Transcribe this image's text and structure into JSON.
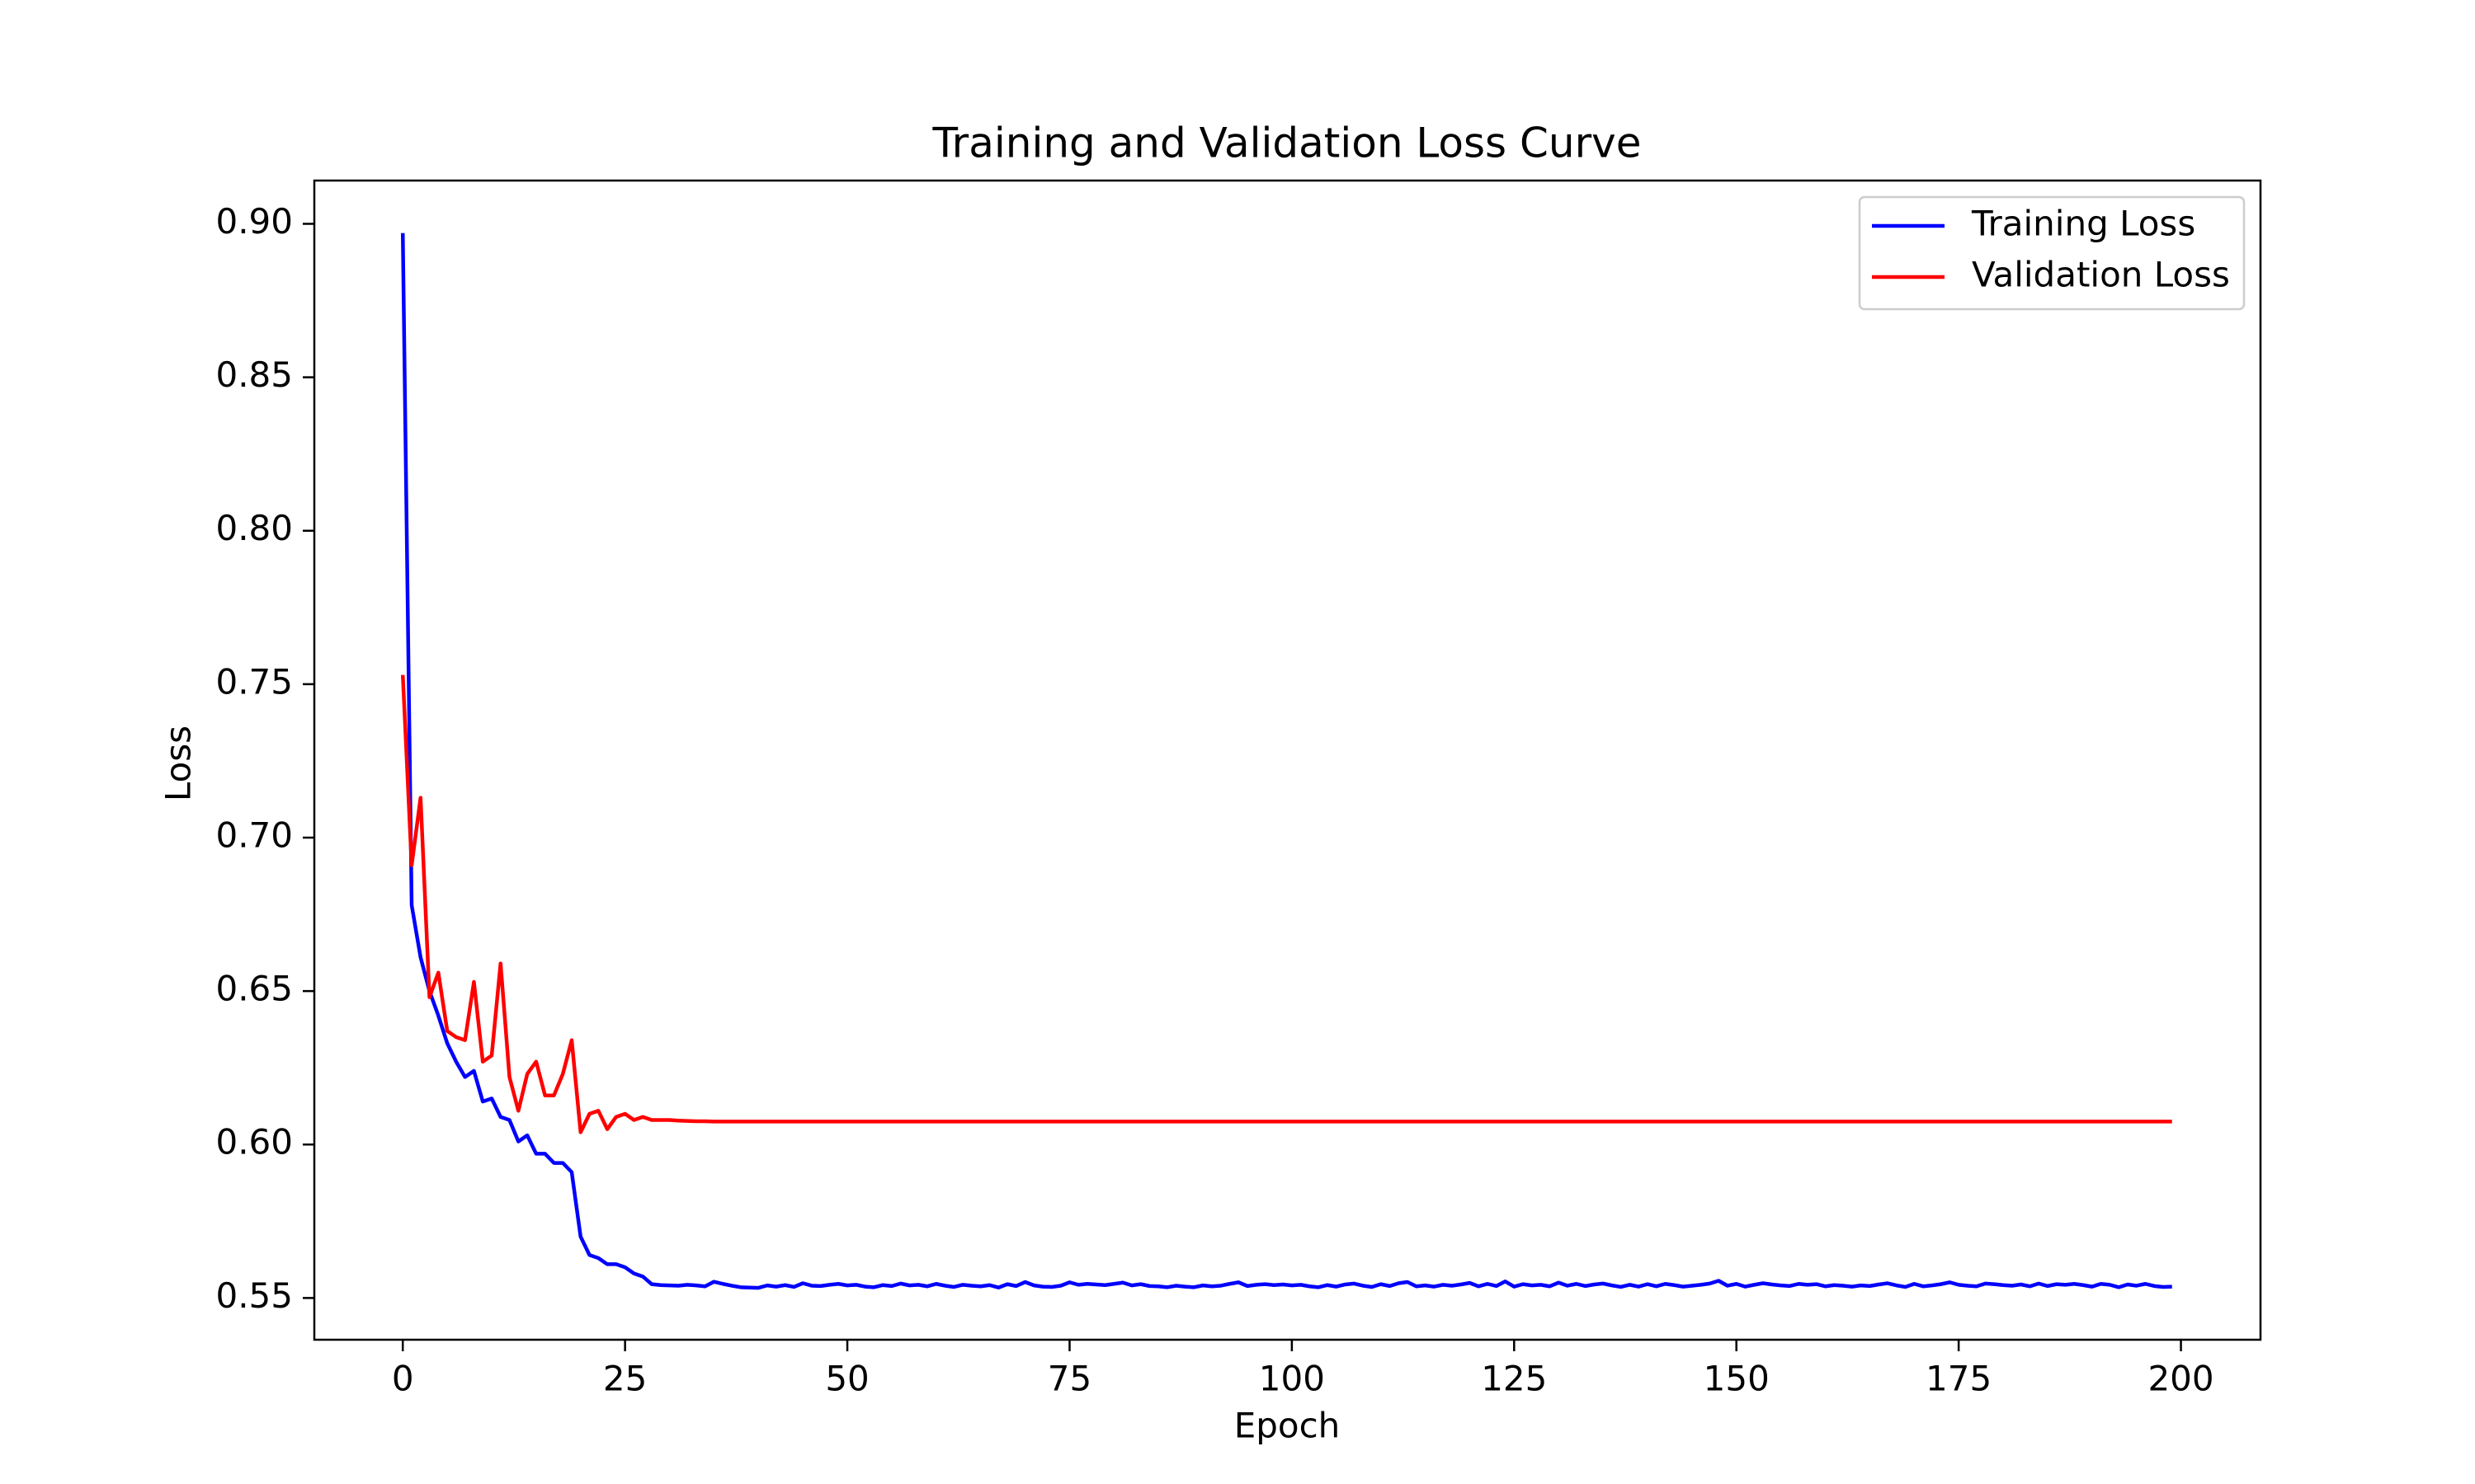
{
  "chart_data": {
    "type": "line",
    "title": "Training and Validation Loss Curve",
    "x_label": "Epoch",
    "y_label": "Loss",
    "legend": "upper right",
    "grid": false,
    "xlim": [
      -9.95,
      208.95
    ],
    "xticks": [
      0,
      25,
      50,
      75,
      100,
      125,
      150,
      175,
      200
    ],
    "ylim": [
      0.5364,
      0.9141
    ],
    "yticks": [
      {
        "value": 0.55,
        "label": "0.55"
      },
      {
        "value": 0.6,
        "label": "0.60"
      },
      {
        "value": 0.65,
        "label": "0.65"
      },
      {
        "value": 0.7,
        "label": "0.70"
      },
      {
        "value": 0.75,
        "label": "0.75"
      },
      {
        "value": 0.8,
        "label": "0.80"
      },
      {
        "value": 0.85,
        "label": "0.85"
      },
      {
        "value": 0.9,
        "label": "0.90"
      }
    ],
    "x": [
      0,
      1,
      2,
      3,
      4,
      5,
      6,
      7,
      8,
      9,
      10,
      11,
      12,
      13,
      14,
      15,
      16,
      17,
      18,
      19,
      20,
      21,
      22,
      23,
      24,
      25,
      26,
      27,
      28,
      29,
      30,
      31,
      32,
      33,
      34,
      35,
      36,
      37,
      38,
      39,
      40,
      41,
      42,
      43,
      44,
      45,
      46,
      47,
      48,
      49,
      50,
      51,
      52,
      53,
      54,
      55,
      56,
      57,
      58,
      59,
      60,
      61,
      62,
      63,
      64,
      65,
      66,
      67,
      68,
      69,
      70,
      71,
      72,
      73,
      74,
      75,
      76,
      77,
      78,
      79,
      80,
      81,
      82,
      83,
      84,
      85,
      86,
      87,
      88,
      89,
      90,
      91,
      92,
      93,
      94,
      95,
      96,
      97,
      98,
      99,
      100,
      101,
      102,
      103,
      104,
      105,
      106,
      107,
      108,
      109,
      110,
      111,
      112,
      113,
      114,
      115,
      116,
      117,
      118,
      119,
      120,
      121,
      122,
      123,
      124,
      125,
      126,
      127,
      128,
      129,
      130,
      131,
      132,
      133,
      134,
      135,
      136,
      137,
      138,
      139,
      140,
      141,
      142,
      143,
      144,
      145,
      146,
      147,
      148,
      149,
      150,
      151,
      152,
      153,
      154,
      155,
      156,
      157,
      158,
      159,
      160,
      161,
      162,
      163,
      164,
      165,
      166,
      167,
      168,
      169,
      170,
      171,
      172,
      173,
      174,
      175,
      176,
      177,
      178,
      179,
      180,
      181,
      182,
      183,
      184,
      185,
      186,
      187,
      188,
      189,
      190,
      191,
      192,
      193,
      194,
      195,
      196,
      197,
      198,
      199
    ],
    "series": [
      {
        "name": "Training Loss",
        "color": "#0000ff",
        "values": [
          0.897,
          0.678,
          0.661,
          0.65,
          0.642,
          0.633,
          0.627,
          0.622,
          0.624,
          0.614,
          0.615,
          0.609,
          0.608,
          0.601,
          0.603,
          0.597,
          0.597,
          0.594,
          0.594,
          0.591,
          0.57,
          0.564,
          0.563,
          0.561,
          0.561,
          0.56,
          0.558,
          0.557,
          0.5545,
          0.5542,
          0.5541,
          0.554,
          0.5543,
          0.5541,
          0.5538,
          0.5553,
          0.5546,
          0.554,
          0.5535,
          0.5534,
          0.5533,
          0.5541,
          0.5537,
          0.5542,
          0.5536,
          0.5548,
          0.554,
          0.5539,
          0.5543,
          0.5546,
          0.5541,
          0.5543,
          0.5537,
          0.5535,
          0.5542,
          0.5539,
          0.5547,
          0.5541,
          0.5543,
          0.5538,
          0.5546,
          0.554,
          0.5536,
          0.5543,
          0.554,
          0.5538,
          0.5542,
          0.5534,
          0.5545,
          0.5539,
          0.5552,
          0.5541,
          0.5537,
          0.5536,
          0.554,
          0.5551,
          0.5543,
          0.5546,
          0.5544,
          0.5542,
          0.5546,
          0.555,
          0.5541,
          0.5545,
          0.5539,
          0.5538,
          0.5535,
          0.554,
          0.5537,
          0.5535,
          0.5541,
          0.5538,
          0.554,
          0.5546,
          0.5551,
          0.5539,
          0.5543,
          0.5545,
          0.5542,
          0.5544,
          0.5541,
          0.5543,
          0.5538,
          0.5535,
          0.5542,
          0.5537,
          0.5544,
          0.5547,
          0.554,
          0.5536,
          0.5545,
          0.5539,
          0.5548,
          0.5552,
          0.5538,
          0.5541,
          0.5537,
          0.5543,
          0.554,
          0.5544,
          0.5549,
          0.5538,
          0.5546,
          0.5539,
          0.5554,
          0.5537,
          0.5545,
          0.5541,
          0.5543,
          0.5538,
          0.555,
          0.554,
          0.5546,
          0.5539,
          0.5544,
          0.5547,
          0.5541,
          0.5536,
          0.5543,
          0.5537,
          0.5545,
          0.5538,
          0.5546,
          0.5542,
          0.5537,
          0.554,
          0.5543,
          0.5547,
          0.5556,
          0.554,
          0.5546,
          0.5537,
          0.5543,
          0.5548,
          0.5544,
          0.5541,
          0.5539,
          0.5546,
          0.5543,
          0.5545,
          0.5538,
          0.5542,
          0.554,
          0.5537,
          0.5541,
          0.5539,
          0.5544,
          0.5548,
          0.5541,
          0.5536,
          0.5546,
          0.5538,
          0.5541,
          0.5545,
          0.5551,
          0.5543,
          0.554,
          0.5538,
          0.5547,
          0.5545,
          0.5542,
          0.554,
          0.5544,
          0.5538,
          0.5547,
          0.5539,
          0.5545,
          0.5543,
          0.5546,
          0.5542,
          0.5537,
          0.5546,
          0.5543,
          0.5535,
          0.5544,
          0.554,
          0.5546,
          0.5539,
          0.5536,
          0.5537
        ]
      },
      {
        "name": "Validation Loss",
        "color": "#ff0000",
        "values": [
          0.753,
          0.691,
          0.713,
          0.648,
          0.656,
          0.637,
          0.635,
          0.634,
          0.653,
          0.627,
          0.629,
          0.659,
          0.622,
          0.611,
          0.623,
          0.627,
          0.616,
          0.616,
          0.623,
          0.634,
          0.604,
          0.61,
          0.611,
          0.605,
          0.609,
          0.61,
          0.608,
          0.609,
          0.608,
          0.608,
          0.608,
          0.6078,
          0.6077,
          0.6076,
          0.6076,
          0.6075,
          0.6075,
          0.6075,
          0.6075,
          0.6075,
          0.6075,
          0.6075,
          0.6075,
          0.6075,
          0.6075,
          0.6075,
          0.6075,
          0.6075,
          0.6075,
          0.6075,
          0.6075,
          0.6075,
          0.6075,
          0.6075,
          0.6075,
          0.6075,
          0.6075,
          0.6075,
          0.6075,
          0.6075,
          0.6075,
          0.6075,
          0.6075,
          0.6075,
          0.6075,
          0.6075,
          0.6075,
          0.6075,
          0.6075,
          0.6075,
          0.6075,
          0.6075,
          0.6075,
          0.6075,
          0.6075,
          0.6075,
          0.6075,
          0.6075,
          0.6075,
          0.6075,
          0.6075,
          0.6075,
          0.6075,
          0.6075,
          0.6075,
          0.6075,
          0.6075,
          0.6075,
          0.6075,
          0.6075,
          0.6075,
          0.6075,
          0.6075,
          0.6075,
          0.6075,
          0.6075,
          0.6075,
          0.6075,
          0.6075,
          0.6075,
          0.6075,
          0.6075,
          0.6075,
          0.6075,
          0.6075,
          0.6075,
          0.6075,
          0.6075,
          0.6075,
          0.6075,
          0.6075,
          0.6075,
          0.6075,
          0.6075,
          0.6075,
          0.6075,
          0.6075,
          0.6075,
          0.6075,
          0.6075,
          0.6075,
          0.6075,
          0.6075,
          0.6075,
          0.6075,
          0.6075,
          0.6075,
          0.6075,
          0.6075,
          0.6075,
          0.6075,
          0.6075,
          0.6075,
          0.6075,
          0.6075,
          0.6075,
          0.6075,
          0.6075,
          0.6075,
          0.6075,
          0.6075,
          0.6075,
          0.6075,
          0.6075,
          0.6075,
          0.6075,
          0.6075,
          0.6075,
          0.6075,
          0.6075,
          0.6075,
          0.6075,
          0.6075,
          0.6075,
          0.6075,
          0.6075,
          0.6075,
          0.6075,
          0.6075,
          0.6075,
          0.6075,
          0.6075,
          0.6075,
          0.6075,
          0.6075,
          0.6075,
          0.6075,
          0.6075,
          0.6075,
          0.6075,
          0.6075,
          0.6075,
          0.6075,
          0.6075,
          0.6075,
          0.6075,
          0.6075,
          0.6075,
          0.6075,
          0.6075,
          0.6075,
          0.6075,
          0.6075,
          0.6075,
          0.6075,
          0.6075,
          0.6075,
          0.6075,
          0.6075,
          0.6075,
          0.6075,
          0.6075,
          0.6075,
          0.6075,
          0.6075,
          0.6075,
          0.6075,
          0.6075,
          0.6075,
          0.6075
        ]
      }
    ]
  }
}
